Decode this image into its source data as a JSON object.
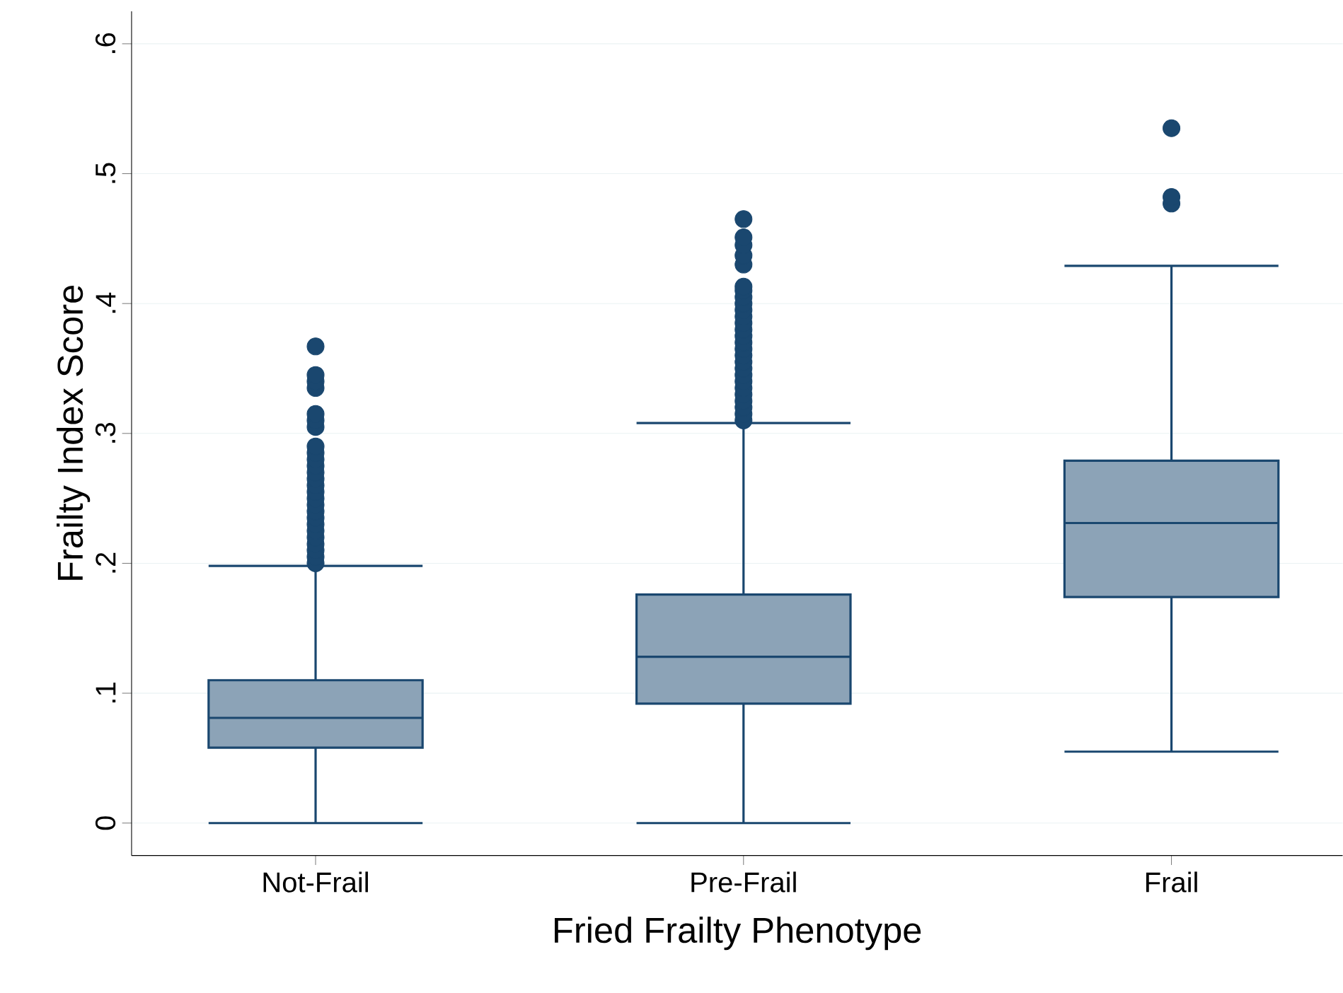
{
  "chart_data": {
    "type": "box",
    "xlabel": "Fried Frailty Phenotype",
    "ylabel": "Frailty Index Score",
    "categories": [
      "Not-Frail",
      "Pre-Frail",
      "Frail"
    ],
    "ylim": [
      -0.025,
      0.625
    ],
    "yticks": [
      0,
      {
        "value": 0.1,
        "label": ".1"
      },
      {
        "value": 0.2,
        "label": ".2"
      },
      {
        "value": 0.3,
        "label": ".3"
      },
      {
        "value": 0.4,
        "label": ".4"
      },
      {
        "value": 0.5,
        "label": ".5"
      },
      {
        "value": 0.6,
        "label": ".6"
      }
    ],
    "grid": "y",
    "series": [
      {
        "color": "#1a476f",
        "boxes": [
          {
            "low": 0,
            "q1": 0.058,
            "median": 0.081,
            "q3": 0.11,
            "high": 0.198,
            "outliers": [
              0.2,
              0.205,
              0.21,
              0.215,
              0.22,
              0.225,
              0.23,
              0.235,
              0.24,
              0.245,
              0.25,
              0.255,
              0.26,
              0.265,
              0.27,
              0.275,
              0.28,
              0.285,
              0.29,
              0.305,
              0.31,
              0.315,
              0.335,
              0.34,
              0.345,
              0.367
            ]
          },
          {
            "low": 0,
            "q1": 0.092,
            "median": 0.128,
            "q3": 0.176,
            "high": 0.308,
            "outliers": [
              0.31,
              0.315,
              0.32,
              0.325,
              0.33,
              0.335,
              0.34,
              0.345,
              0.35,
              0.355,
              0.36,
              0.365,
              0.37,
              0.375,
              0.38,
              0.385,
              0.39,
              0.395,
              0.4,
              0.405,
              0.41,
              0.413,
              0.43,
              0.437,
              0.445,
              0.451,
              0.465
            ]
          },
          {
            "low": 0.055,
            "q1": 0.174,
            "median": 0.231,
            "q3": 0.279,
            "high": 0.429,
            "outliers": [
              0.477,
              0.482,
              0.535
            ]
          }
        ]
      }
    ]
  }
}
